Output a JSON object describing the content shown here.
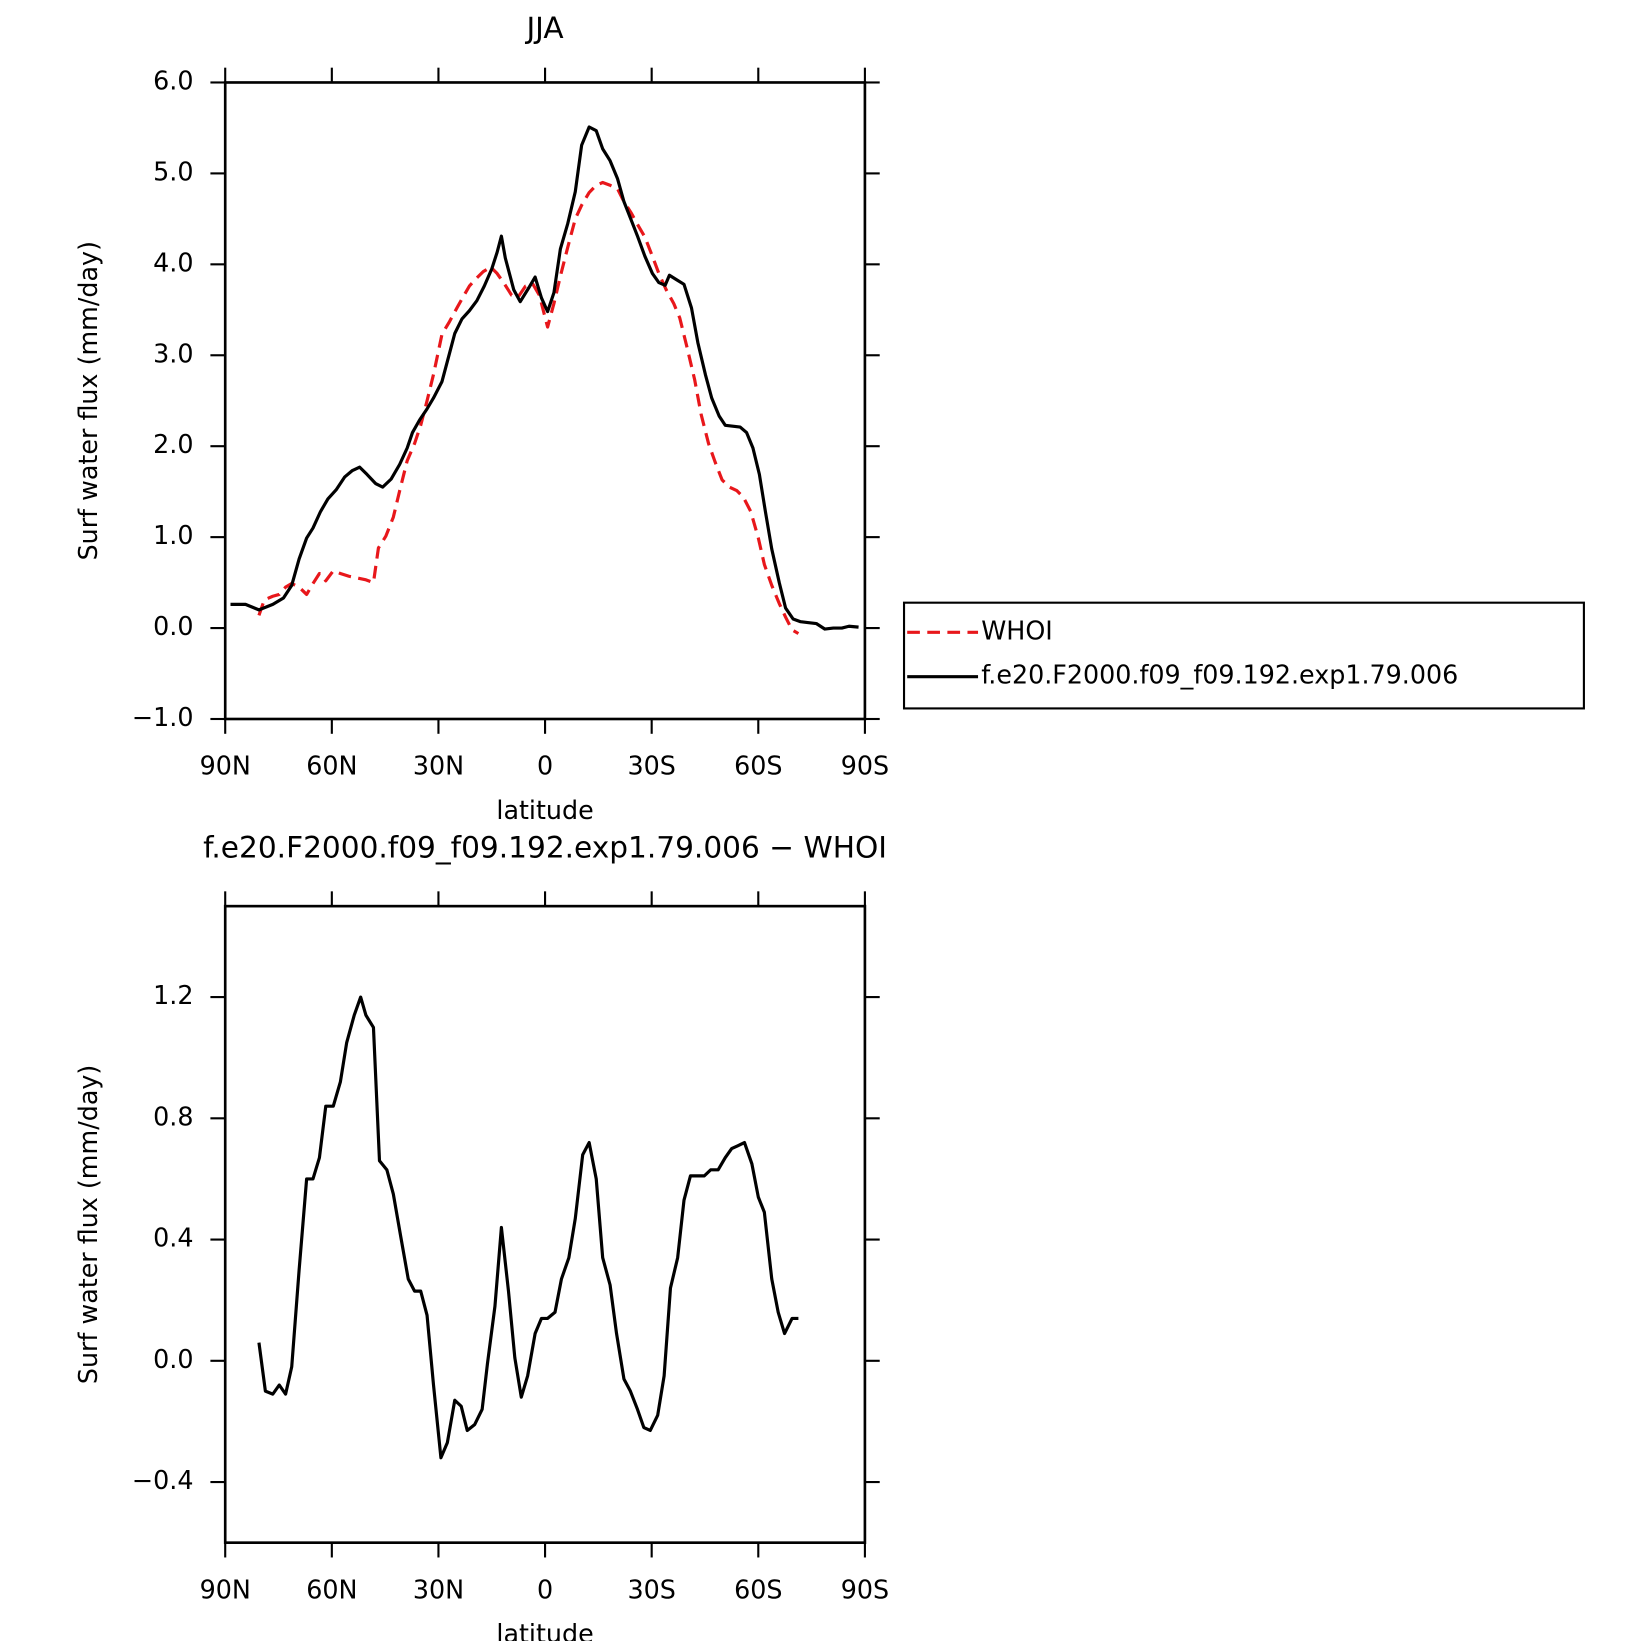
{
  "chart_data": [
    {
      "type": "line",
      "title": "JJA",
      "xlabel": "latitude",
      "ylabel": "Surf water flux (mm/day)",
      "xlim": [
        90,
        -90
      ],
      "xticks": [
        {
          "value": 90,
          "label": "90N"
        },
        {
          "value": 60,
          "label": "60N"
        },
        {
          "value": 30,
          "label": "30N"
        },
        0,
        {
          "value": -30,
          "label": "30S"
        },
        {
          "value": -60,
          "label": "60S"
        },
        {
          "value": -90,
          "label": "90S"
        }
      ],
      "ylim": [
        -1,
        6
      ],
      "yticks": [
        {
          "value": -1,
          "label": "−1.0"
        },
        {
          "value": 0,
          "label": "0.0"
        },
        {
          "value": 1,
          "label": "1.0"
        },
        {
          "value": 2,
          "label": "2.0"
        },
        {
          "value": 3,
          "label": "3.0"
        },
        {
          "value": 4,
          "label": "4.0"
        },
        {
          "value": 5,
          "label": "5.0"
        },
        {
          "value": 6,
          "label": "6.0"
        }
      ],
      "legend": "right",
      "series": [
        {
          "name": "WHOI",
          "color": "#e8171b",
          "dash": "dashed",
          "x": [
            80.5,
            79.0,
            76.6,
            74.8,
            73.0,
            71.3,
            69.2,
            67.1,
            65.3,
            63.5,
            61.7,
            59.6,
            57.6,
            55.2,
            52.8,
            50.4,
            48.3,
            46.9,
            44.8,
            42.7,
            40.9,
            38.8,
            36.7,
            35.0,
            33.2,
            31.4,
            29.0,
            26.9,
            24.8,
            23.1,
            21.3,
            19.5,
            17.4,
            15.3,
            13.5,
            11.7,
            9.4,
            7.6,
            5.5,
            3.4,
            1.6,
            -0.7,
            -2.5,
            -4.3,
            -6.4,
            -8.5,
            -10.3,
            -12.4,
            -14.4,
            -16.2,
            -18.3,
            -20.4,
            -22.2,
            -24.3,
            -26.0,
            -28.1,
            -30.2,
            -32.0,
            -34.1,
            -36.2,
            -37.9,
            -40.0,
            -42.1,
            -43.9,
            -46.0,
            -47.8,
            -49.8,
            -51.9,
            -54.0,
            -55.8,
            -57.9,
            -60.0,
            -61.7,
            -63.8,
            -65.9,
            -67.7,
            -69.5,
            -71.3
          ],
          "values": [
            0.14,
            0.31,
            0.35,
            0.37,
            0.45,
            0.49,
            0.45,
            0.37,
            0.49,
            0.6,
            0.52,
            0.63,
            0.6,
            0.57,
            0.55,
            0.53,
            0.5,
            0.88,
            1.01,
            1.22,
            1.51,
            1.84,
            2.03,
            2.23,
            2.5,
            2.79,
            3.23,
            3.37,
            3.52,
            3.64,
            3.76,
            3.84,
            3.92,
            3.97,
            3.9,
            3.8,
            3.66,
            3.64,
            3.76,
            3.78,
            3.66,
            3.31,
            3.57,
            3.87,
            4.19,
            4.5,
            4.65,
            4.79,
            4.87,
            4.9,
            4.87,
            4.83,
            4.69,
            4.56,
            4.44,
            4.3,
            4.09,
            3.9,
            3.72,
            3.57,
            3.41,
            3.08,
            2.73,
            2.35,
            2.03,
            1.83,
            1.63,
            1.55,
            1.51,
            1.44,
            1.28,
            0.99,
            0.7,
            0.47,
            0.27,
            0.12,
            -0.02,
            -0.06
          ]
        },
        {
          "name": "f.e20.F2000.f09_f09.192.exp1.79.006",
          "color": "#000000",
          "dash": "solid",
          "x": [
            88.5,
            84.3,
            80.5,
            76.6,
            73.6,
            71.3,
            69.2,
            67.1,
            65.3,
            63.2,
            61.1,
            58.8,
            56.4,
            54.3,
            52.2,
            50.1,
            47.7,
            45.7,
            43.3,
            40.9,
            38.8,
            37.3,
            35.3,
            33.2,
            31.4,
            29.0,
            26.9,
            25.4,
            23.4,
            21.3,
            19.2,
            17.1,
            15.0,
            13.5,
            12.3,
            11.2,
            8.8,
            7.0,
            4.6,
            2.8,
            1.0,
            -0.7,
            -2.5,
            -4.3,
            -6.4,
            -8.5,
            -10.3,
            -12.4,
            -14.4,
            -16.2,
            -18.3,
            -20.4,
            -22.2,
            -24.3,
            -26.0,
            -28.1,
            -30.2,
            -32.0,
            -33.8,
            -35.0,
            -37.0,
            -39.1,
            -41.2,
            -43.0,
            -45.1,
            -46.9,
            -49.0,
            -50.7,
            -52.8,
            -54.9,
            -56.7,
            -58.5,
            -60.3,
            -62.0,
            -63.8,
            -65.9,
            -67.7,
            -69.8,
            -71.9,
            -73.9,
            -76.3,
            -78.7,
            -81.1,
            -83.5,
            -85.5,
            -88.2
          ],
          "values": [
            0.26,
            0.26,
            0.2,
            0.26,
            0.33,
            0.47,
            0.76,
            0.99,
            1.1,
            1.28,
            1.42,
            1.52,
            1.66,
            1.73,
            1.77,
            1.69,
            1.59,
            1.55,
            1.64,
            1.8,
            1.98,
            2.15,
            2.29,
            2.41,
            2.53,
            2.71,
            3.02,
            3.24,
            3.4,
            3.49,
            3.6,
            3.76,
            3.95,
            4.13,
            4.31,
            4.07,
            3.72,
            3.59,
            3.74,
            3.86,
            3.63,
            3.48,
            3.69,
            4.17,
            4.45,
            4.8,
            5.31,
            5.51,
            5.47,
            5.27,
            5.14,
            4.94,
            4.69,
            4.48,
            4.31,
            4.09,
            3.9,
            3.8,
            3.77,
            3.88,
            3.83,
            3.78,
            3.52,
            3.14,
            2.79,
            2.53,
            2.33,
            2.23,
            2.22,
            2.21,
            2.15,
            1.98,
            1.69,
            1.28,
            0.87,
            0.5,
            0.22,
            0.1,
            0.07,
            0.06,
            0.05,
            -0.01,
            0,
            0,
            0.02,
            0.01
          ]
        }
      ]
    },
    {
      "type": "line",
      "title": "f.e20.F2000.f09_f09.192.exp1.79.006 − WHOI",
      "xlabel": "latitude",
      "ylabel": "Surf water flux (mm/day)",
      "xlim": [
        90,
        -90
      ],
      "xticks": [
        {
          "value": 90,
          "label": "90N"
        },
        {
          "value": 60,
          "label": "60N"
        },
        {
          "value": 30,
          "label": "30N"
        },
        0,
        {
          "value": -30,
          "label": "30S"
        },
        {
          "value": -60,
          "label": "60S"
        },
        {
          "value": -90,
          "label": "90S"
        }
      ],
      "ylim": [
        -0.6,
        1.5
      ],
      "yticks": [
        {
          "value": -0.4,
          "label": "−0.4"
        },
        {
          "value": 0,
          "label": "0.0"
        },
        0.4,
        0.8,
        1.2
      ],
      "series": [
        {
          "color": "#000000",
          "dash": "solid",
          "x": [
            80.5,
            78.7,
            76.6,
            74.8,
            73.0,
            71.3,
            69.2,
            67.1,
            65.3,
            63.5,
            61.7,
            59.6,
            57.6,
            55.8,
            53.7,
            51.9,
            50.4,
            48.3,
            46.6,
            44.5,
            42.7,
            40.6,
            38.5,
            36.7,
            35.0,
            33.2,
            31.4,
            29.3,
            27.5,
            25.4,
            23.6,
            21.9,
            19.8,
            17.7,
            16.2,
            14.1,
            12.3,
            10.3,
            8.5,
            6.7,
            4.9,
            2.8,
            1.0,
            -0.7,
            -2.8,
            -4.6,
            -6.7,
            -8.5,
            -10.6,
            -12.4,
            -14.4,
            -16.2,
            -18.3,
            -20.1,
            -22.2,
            -24.0,
            -26.0,
            -27.8,
            -29.6,
            -31.7,
            -33.5,
            -35.3,
            -37.3,
            -39.1,
            -40.9,
            -43.0,
            -44.8,
            -46.6,
            -48.7,
            -50.7,
            -52.5,
            -54.3,
            -56.1,
            -58.2,
            -60.0,
            -61.7,
            -63.8,
            -65.6,
            -67.4,
            -69.5,
            -71.3
          ],
          "values": [
            0.06,
            -0.1,
            -0.11,
            -0.08,
            -0.11,
            -0.02,
            0.3,
            0.6,
            0.6,
            0.67,
            0.84,
            0.84,
            0.92,
            1.05,
            1.14,
            1.2,
            1.14,
            1.1,
            0.66,
            0.63,
            0.55,
            0.41,
            0.27,
            0.23,
            0.23,
            0.15,
            -0.08,
            -0.32,
            -0.27,
            -0.13,
            -0.15,
            -0.23,
            -0.21,
            -0.16,
            -0.01,
            0.18,
            0.44,
            0.23,
            0.01,
            -0.12,
            -0.05,
            0.09,
            0.14,
            0.14,
            0.16,
            0.27,
            0.34,
            0.47,
            0.68,
            0.72,
            0.6,
            0.34,
            0.25,
            0.09,
            -0.06,
            -0.1,
            -0.16,
            -0.22,
            -0.23,
            -0.18,
            -0.05,
            0.24,
            0.34,
            0.53,
            0.61,
            0.61,
            0.61,
            0.63,
            0.63,
            0.67,
            0.7,
            0.71,
            0.72,
            0.65,
            0.54,
            0.49,
            0.27,
            0.16,
            0.09,
            0.14,
            0.14
          ]
        }
      ]
    }
  ]
}
